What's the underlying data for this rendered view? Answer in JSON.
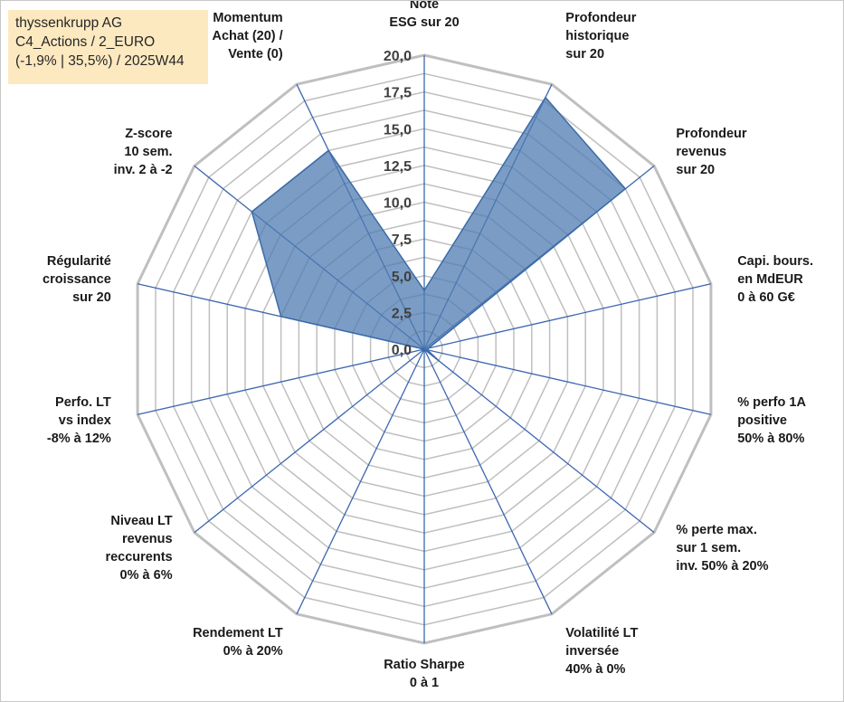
{
  "header": {
    "lines": [
      "thyssenkrupp AG",
      "C4_Actions / 2_EURO",
      "(-1,9% | 35,5%) / 2025W44"
    ]
  },
  "chart_data": {
    "type": "radar",
    "rmin": 0,
    "rmax": 20,
    "grid_step": 1.25,
    "tick_values": [
      0,
      2.5,
      5,
      7.5,
      10,
      12.5,
      15,
      17.5,
      20
    ],
    "tick_labels": [
      "0,0",
      "2,5",
      "5,0",
      "7,5",
      "10,0",
      "12,5",
      "15,0",
      "17,5",
      "20,0"
    ],
    "axes": [
      [
        "Note",
        "ESG sur 20"
      ],
      [
        "Profondeur",
        "historique",
        "sur 20"
      ],
      [
        "Profondeur",
        "revenus",
        "sur 20"
      ],
      [
        "Capi. bours.",
        "en MdEUR",
        "0 à 60 G€"
      ],
      [
        "% perfo 1A",
        "positive",
        "50% à 80%"
      ],
      [
        "% perte max.",
        "sur 1 sem.",
        "inv. 50% à 20%"
      ],
      [
        "Volatilité LT",
        "inversée",
        "40% à 0%"
      ],
      [
        "Ratio Sharpe",
        "0 à 1"
      ],
      [
        "Rendement LT",
        "0% à 20%"
      ],
      [
        "Niveau LT",
        "revenus",
        "reccurents",
        "0% à 6%"
      ],
      [
        "Perfo. LT",
        "vs index",
        "-8% à 12%"
      ],
      [
        "Régularité",
        "croissance",
        "sur 20"
      ],
      [
        "Z-score",
        "10 sem.",
        "inv. 2 à -2"
      ],
      [
        "Momentum",
        "Achat (20) /",
        "Vente (0)"
      ]
    ],
    "values": [
      4.0,
      19.0,
      17.5,
      0.3,
      0.2,
      1.3,
      0.0,
      0.0,
      0.0,
      0.0,
      0.0,
      10.0,
      15.0,
      15.0
    ],
    "colors": {
      "fill": "#4f7cb1",
      "fill_opacity": 0.75,
      "stroke": "#3a6aa8",
      "grid": "#bfbfbf",
      "spoke": "#3c66b0"
    }
  }
}
